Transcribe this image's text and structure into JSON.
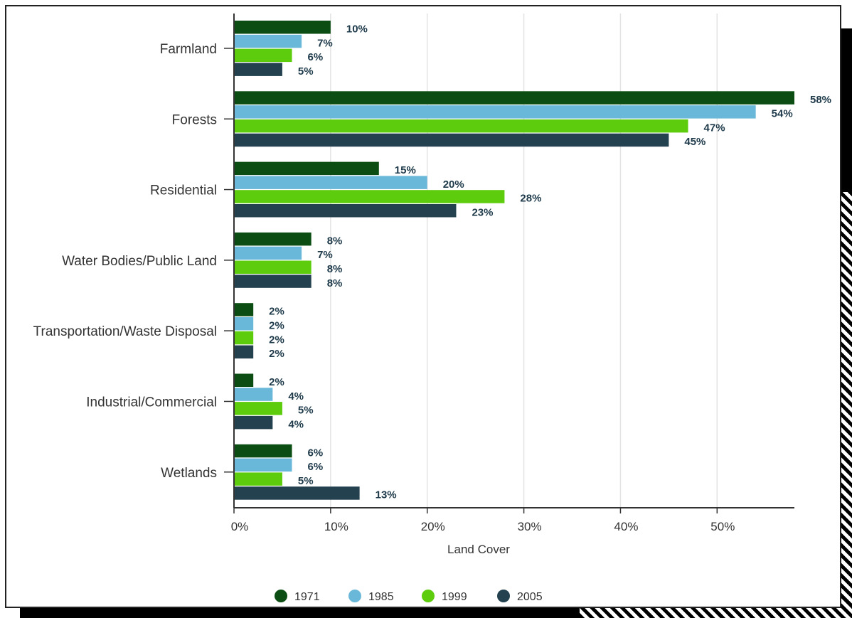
{
  "chart_data": {
    "type": "bar",
    "orientation": "horizontal",
    "categories": [
      "Farmland",
      "Forests",
      "Residential",
      "Water Bodies/Public Land",
      "Transportation/Waste Disposal",
      "Industrial/Commercial",
      "Wetlands"
    ],
    "series": [
      {
        "name": "1971",
        "color": "#0b4d12",
        "values": [
          10,
          58,
          15,
          8,
          2,
          2,
          6
        ],
        "labels": [
          "10%",
          "58%",
          "15%",
          "8%",
          "2%",
          "2%",
          "6%"
        ]
      },
      {
        "name": "1985",
        "color": "#6ab8d9",
        "values": [
          7,
          54,
          20,
          7,
          2,
          4,
          6
        ],
        "labels": [
          "7%",
          "54%",
          "20%",
          "7%",
          "2%",
          "4%",
          "6%"
        ]
      },
      {
        "name": "1999",
        "color": "#5ccc0c",
        "values": [
          6,
          47,
          28,
          8,
          2,
          5,
          5
        ],
        "labels": [
          "6%",
          "47%",
          "28%",
          "8%",
          "2%",
          "5%",
          "5%"
        ]
      },
      {
        "name": "2005",
        "color": "#23414f",
        "values": [
          5,
          45,
          23,
          8,
          2,
          4,
          13
        ],
        "labels": [
          "5%",
          "45%",
          "23%",
          "8%",
          "2%",
          "4%",
          "13%"
        ]
      }
    ],
    "xlabel": "Land Cover",
    "xlim": [
      0,
      58
    ],
    "xticks": [
      0,
      10,
      20,
      30,
      40,
      50
    ],
    "xtick_labels": [
      "0%",
      "10%",
      "20%",
      "30%",
      "40%",
      "50%"
    ],
    "grid": "vertical",
    "legend": "bottom-center"
  }
}
